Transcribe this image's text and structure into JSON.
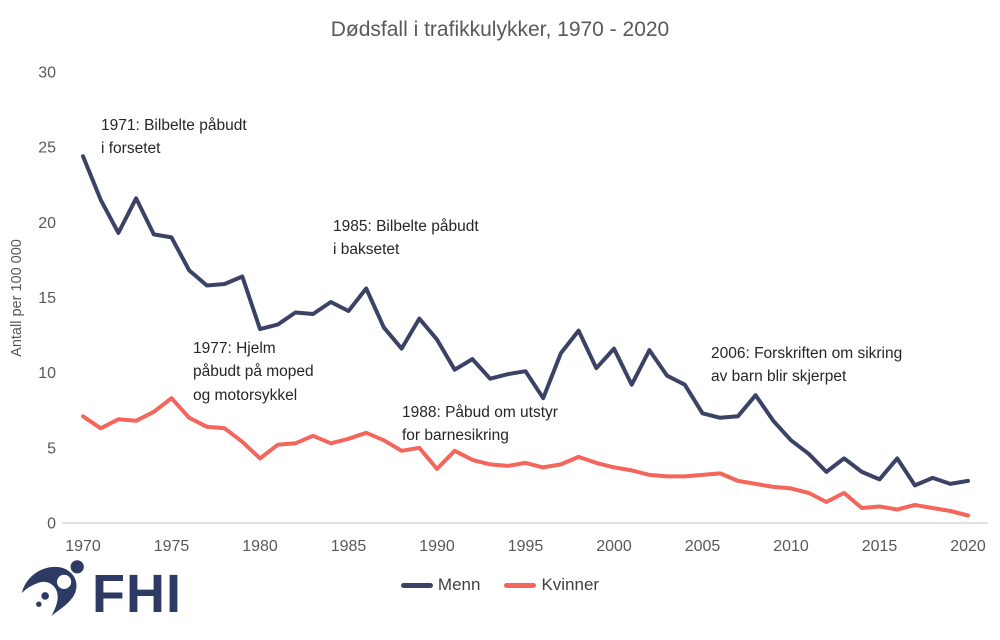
{
  "logo": {
    "text": "FHI"
  },
  "colors": {
    "axis": "#d9d9d9",
    "tick_text": "#595959",
    "title_text": "#595959",
    "annotation_text": "#262626",
    "logo": "#2c3a64"
  },
  "chart_data": {
    "type": "line",
    "title": "Dødsfall i trafikkulykker, 1970 - 2020",
    "xlabel": "",
    "ylabel": "Antall per 100 000",
    "ylim": [
      0,
      30
    ],
    "y_ticks": [
      0,
      5,
      10,
      15,
      20,
      25,
      30
    ],
    "x_ticks": [
      1970,
      1975,
      1980,
      1985,
      1990,
      1995,
      2000,
      2005,
      2010,
      2015,
      2020
    ],
    "grid": false,
    "legend_position": "bottom",
    "x": [
      1970,
      1971,
      1972,
      1973,
      1974,
      1975,
      1976,
      1977,
      1978,
      1979,
      1980,
      1981,
      1982,
      1983,
      1984,
      1985,
      1986,
      1987,
      1988,
      1989,
      1990,
      1991,
      1992,
      1993,
      1994,
      1995,
      1996,
      1997,
      1998,
      1999,
      2000,
      2001,
      2002,
      2003,
      2004,
      2005,
      2006,
      2007,
      2008,
      2009,
      2010,
      2011,
      2012,
      2013,
      2014,
      2015,
      2016,
      2017,
      2018,
      2019,
      2020
    ],
    "series": [
      {
        "name": "Menn",
        "color": "#3b4266",
        "values": [
          24.4,
          21.5,
          19.3,
          21.6,
          19.2,
          19.0,
          16.8,
          15.8,
          15.9,
          16.4,
          12.9,
          13.2,
          14.0,
          13.9,
          14.7,
          14.1,
          15.6,
          13.0,
          11.6,
          13.6,
          12.2,
          10.2,
          10.9,
          9.6,
          9.9,
          10.1,
          8.3,
          11.3,
          12.8,
          10.3,
          11.6,
          9.2,
          11.5,
          9.8,
          9.2,
          7.3,
          7.0,
          7.1,
          8.5,
          6.8,
          5.5,
          4.6,
          3.4,
          4.3,
          3.4,
          2.9,
          4.3,
          2.5,
          3.0,
          2.6,
          2.8
        ]
      },
      {
        "name": "Kvinner",
        "color": "#f4655c",
        "values": [
          7.1,
          6.3,
          6.9,
          6.8,
          7.4,
          8.3,
          7.0,
          6.4,
          6.3,
          5.4,
          4.3,
          5.2,
          5.3,
          5.8,
          5.3,
          5.6,
          6.0,
          5.5,
          4.8,
          5.0,
          3.6,
          4.8,
          4.2,
          3.9,
          3.8,
          4.0,
          3.7,
          3.9,
          4.4,
          4.0,
          3.7,
          3.5,
          3.2,
          3.1,
          3.1,
          3.2,
          3.3,
          2.8,
          2.6,
          2.4,
          2.3,
          2.0,
          1.4,
          2.0,
          1.0,
          1.1,
          0.9,
          1.2,
          1.0,
          0.8,
          0.5
        ]
      }
    ],
    "annotations": [
      "1971: Bilbelte påbudt\ni forsetet",
      "1985: Bilbelte påbudt\ni baksetet",
      "1977: Hjelm\npåbudt på moped\nog motorsykkel",
      "1988: Påbud om utstyr\nfor barnesikring",
      "2006: Forskriften om sikring\nav barn blir skjerpet"
    ]
  }
}
